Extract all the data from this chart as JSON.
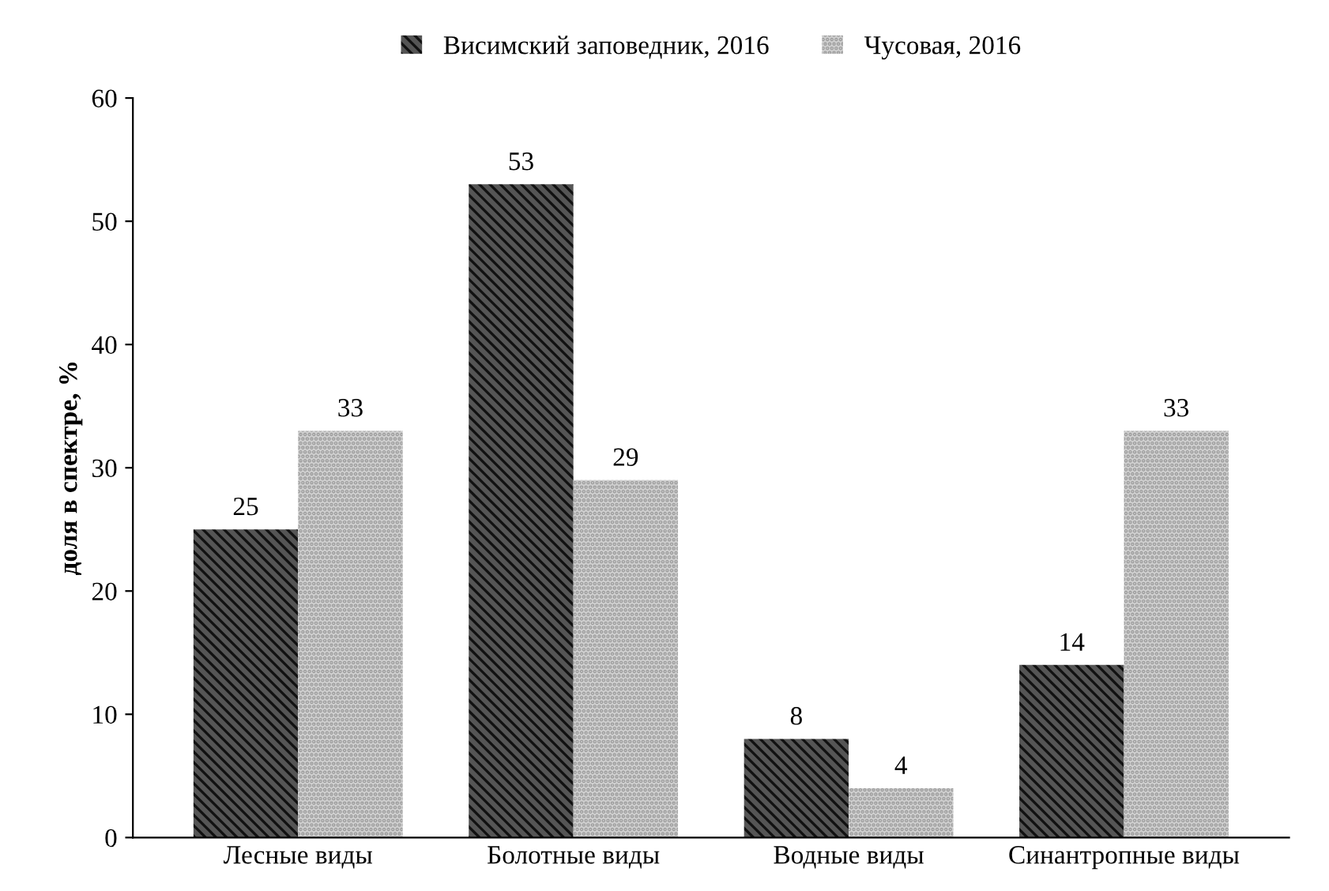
{
  "chart_data": {
    "type": "bar",
    "ylabel": "доля в спектре, %",
    "categories": [
      "Лесные виды",
      "Болотные виды",
      "Водные виды",
      "Синантропные виды"
    ],
    "series": [
      {
        "name": "Висимский заповедник, 2016",
        "color": "#555555",
        "values": [
          25,
          53,
          8,
          14
        ]
      },
      {
        "name": "Чусовая, 2016",
        "color": "#d0d0d0",
        "values": [
          33,
          29,
          4,
          33
        ]
      }
    ],
    "ylim": [
      0,
      60
    ],
    "yticks": [
      0,
      10,
      20,
      30,
      40,
      50,
      60
    ],
    "data_labels": true,
    "legend": "top",
    "grid": false
  }
}
